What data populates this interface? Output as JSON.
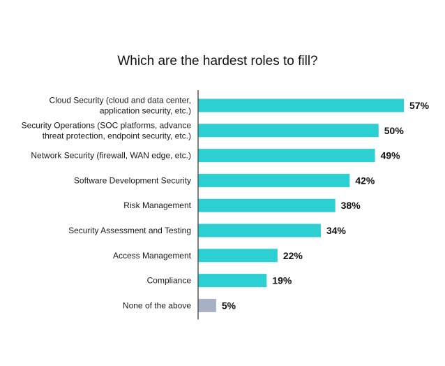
{
  "chart_data": {
    "type": "bar",
    "orientation": "horizontal",
    "title": "Which are the hardest roles to fill?",
    "categories": [
      [
        "Cloud Security (cloud and data center,",
        "application security, etc.)"
      ],
      [
        "Security Operations (SOC platforms, advance",
        "threat protection, endpoint security, etc.)"
      ],
      [
        "Network Security (firewall, WAN edge, etc.)"
      ],
      [
        "Software Development Security"
      ],
      [
        "Risk Management"
      ],
      [
        "Security Assessment and Testing"
      ],
      [
        "Access Management"
      ],
      [
        "Compliance"
      ],
      [
        "None of the above"
      ]
    ],
    "values": [
      57,
      50,
      49,
      42,
      38,
      34,
      22,
      19,
      5
    ],
    "value_labels": [
      "57%",
      "50%",
      "49%",
      "42%",
      "38%",
      "34%",
      "22%",
      "19%",
      "5%"
    ],
    "unit": "%",
    "xlim": [
      0,
      57
    ],
    "colors": {
      "bar": "#2ccfd2",
      "highlight_bar": "#a7b1c6",
      "axis": "#555555"
    },
    "highlight_index": 8,
    "grid": false,
    "legend": "none"
  }
}
